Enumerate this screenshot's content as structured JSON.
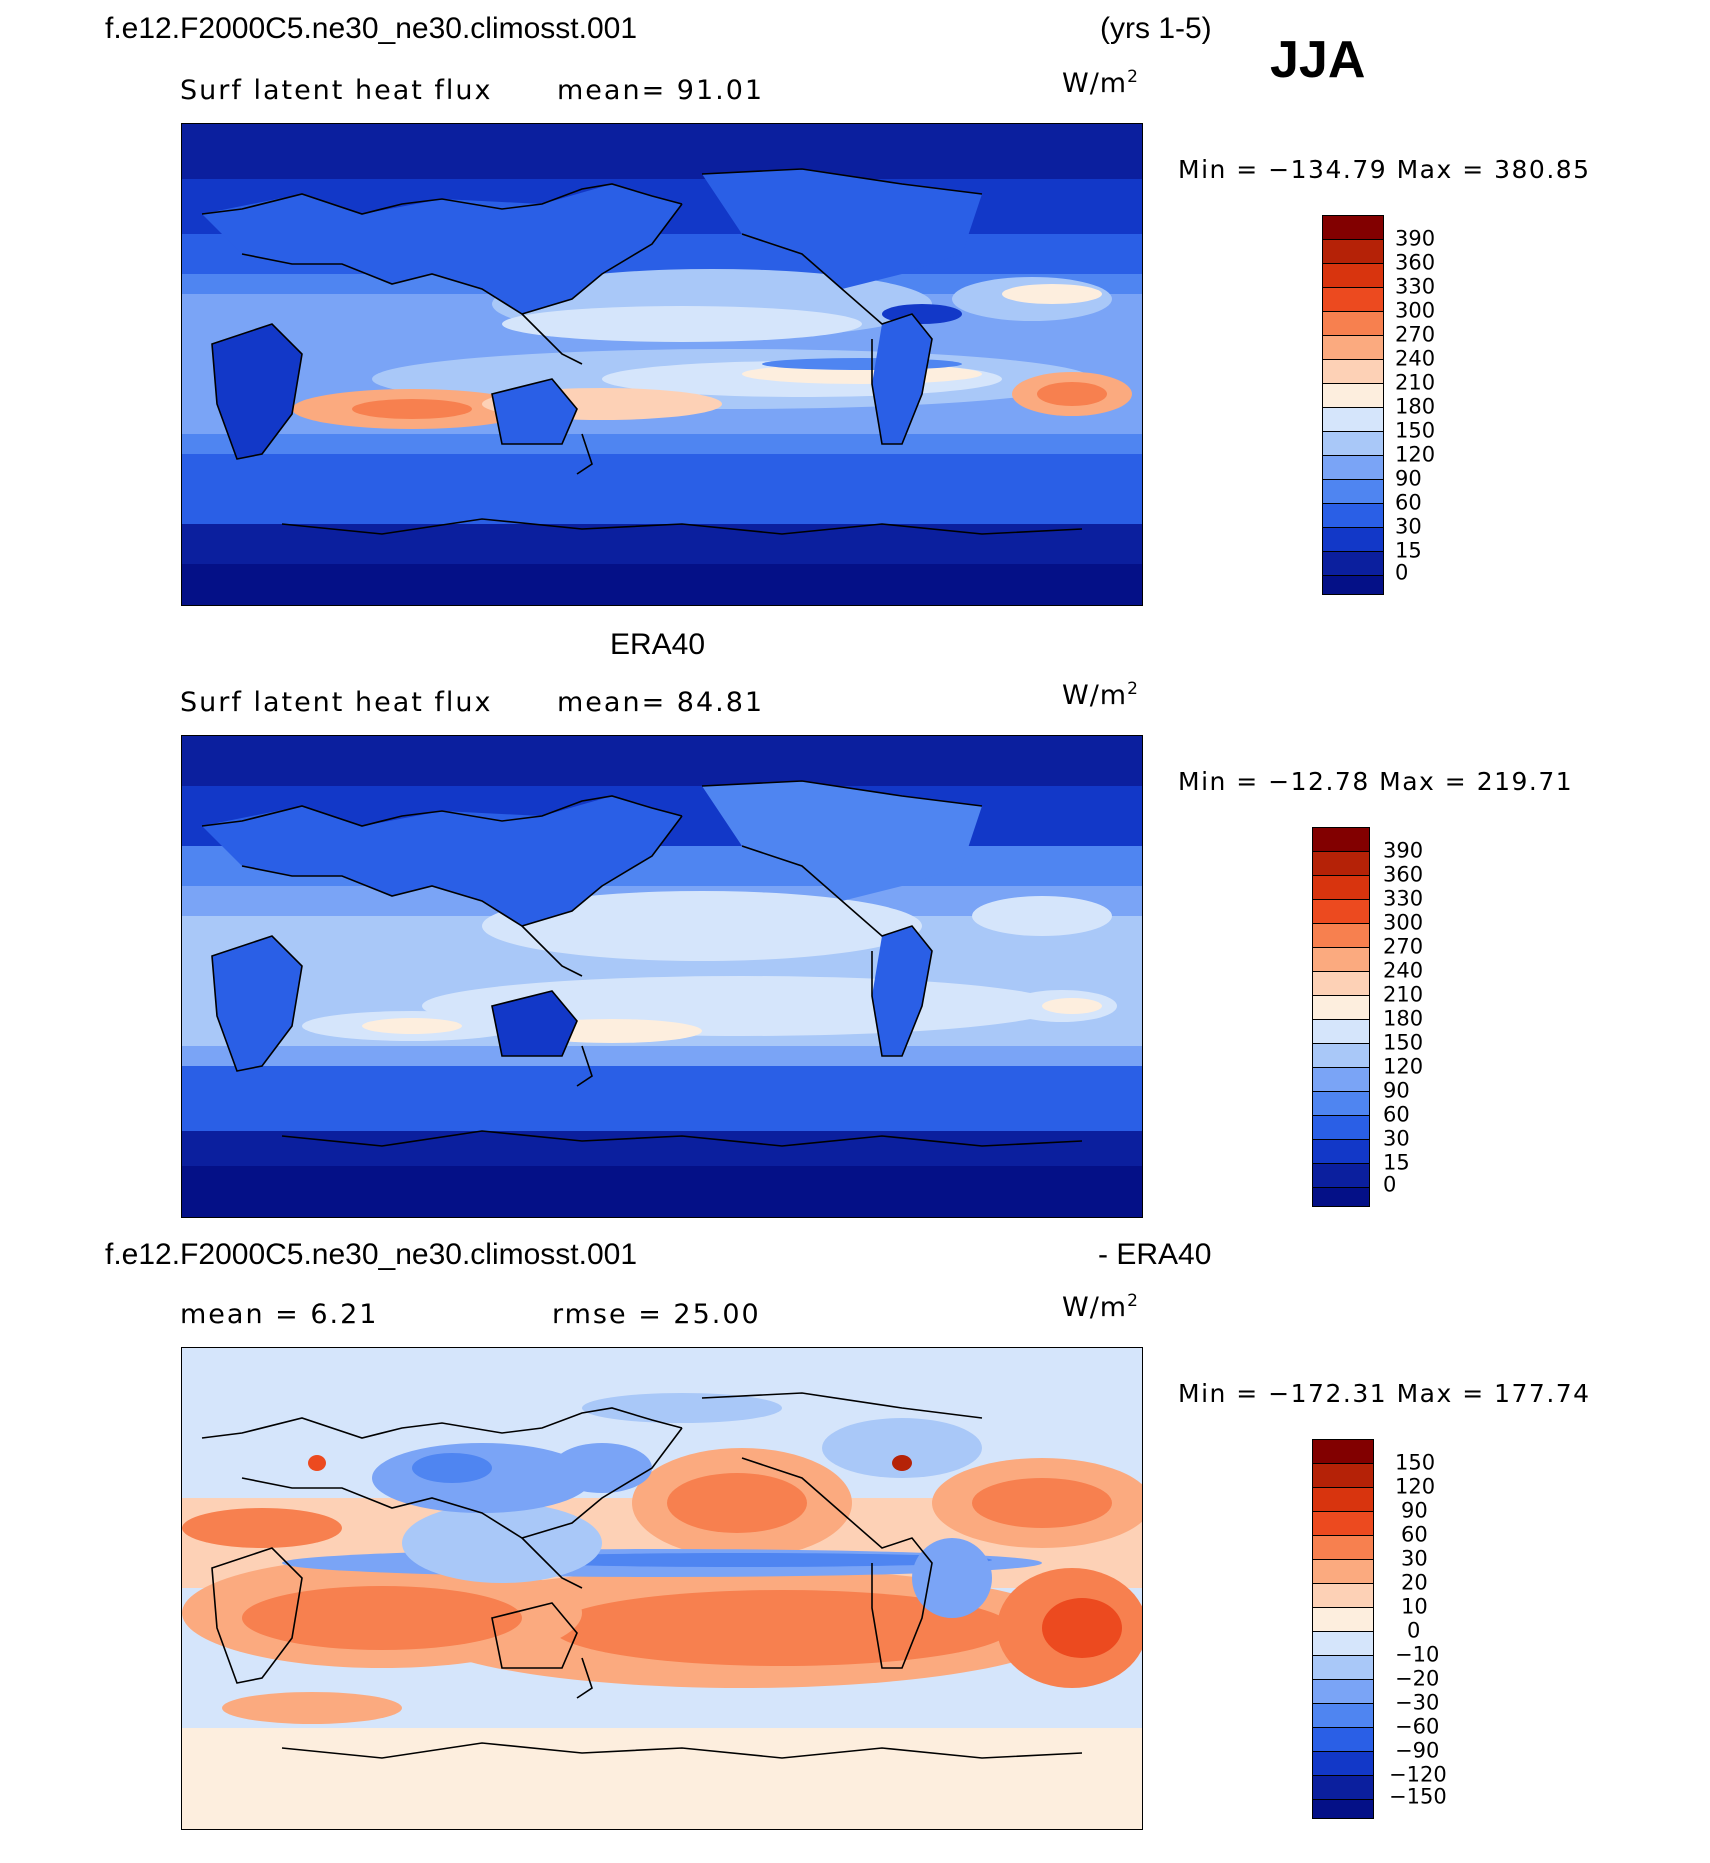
{
  "header": {
    "case_name": "f.e12.F2000C5.ne30_ne30.climosst.001",
    "years": "(yrs 1-5)",
    "season": "JJA"
  },
  "colors": {
    "blues": [
      "#05148a",
      "#0a2ab0",
      "#1240d0",
      "#2255e0",
      "#3a72ee",
      "#5b8ff5",
      "#7fa9f7",
      "#a4c3f8",
      "#c8dcfa",
      "#e4eefb"
    ],
    "reds": [
      "#fff0e2",
      "#fdd6c0",
      "#fbb692",
      "#f99064",
      "#f56c3c",
      "#ec4b20",
      "#d8320f",
      "#b81f08",
      "#8a0a00"
    ]
  },
  "panels": [
    {
      "id": "model",
      "top_title": "",
      "variable": "Surf latent heat flux",
      "stat1": "mean=   91.01",
      "stat2": "",
      "units": "W/m",
      "units_sup": "2",
      "min_max": "Min = −134.79 Max = 380.85",
      "colorbar_ticks": [
        "390",
        "360",
        "330",
        "300",
        "270",
        "240",
        "210",
        "180",
        "150",
        "120",
        "90",
        "60",
        "30",
        "15",
        "0"
      ],
      "colorbar_colors": [
        "#820000",
        "#b52207",
        "#d8340e",
        "#ec4a1f",
        "#f7804f",
        "#fbaa7f",
        "#fdd1b6",
        "#fdeede",
        "#d5e5fb",
        "#a9c8f8",
        "#7aa4f6",
        "#4f85f1",
        "#2a5fe6",
        "#1238c8",
        "#0b1f9e",
        "#041087"
      ]
    },
    {
      "id": "obs",
      "top_title": "ERA40",
      "variable": "Surf latent heat flux",
      "stat1": "mean=   84.81",
      "stat2": "",
      "units": "W/m",
      "units_sup": "2",
      "min_max": "Min = −12.78 Max = 219.71",
      "colorbar_ticks": [
        "390",
        "360",
        "330",
        "300",
        "270",
        "240",
        "210",
        "180",
        "150",
        "120",
        "90",
        "60",
        "30",
        "15",
        "0"
      ],
      "colorbar_colors": [
        "#820000",
        "#b52207",
        "#d8340e",
        "#ec4a1f",
        "#f7804f",
        "#fbaa7f",
        "#fdd1b6",
        "#fdeede",
        "#d5e5fb",
        "#a9c8f8",
        "#7aa4f6",
        "#4f85f1",
        "#2a5fe6",
        "#1238c8",
        "#0b1f9e",
        "#041087"
      ]
    },
    {
      "id": "diff",
      "top_title": "f.e12.F2000C5.ne30_ne30.climosst.001",
      "top_title_right": "- ERA40",
      "variable": "",
      "stat1": "mean =    6.21",
      "stat2": "rmse =   25.00",
      "units": "W/m",
      "units_sup": "2",
      "min_max": "Min = −172.31 Max = 177.74",
      "colorbar_ticks": [
        "150",
        "120",
        "90",
        "60",
        "30",
        "20",
        "10",
        "0",
        "−10",
        "−20",
        "−30",
        "−60",
        "−90",
        "−120",
        "−150"
      ],
      "colorbar_colors": [
        "#820000",
        "#b52207",
        "#d8340e",
        "#ec4a1f",
        "#f7804f",
        "#fbaa7f",
        "#fdd1b6",
        "#fdeede",
        "#d5e5fb",
        "#a9c8f8",
        "#7aa4f6",
        "#4f85f1",
        "#2a5fe6",
        "#1238c8",
        "#0b1f9e",
        "#041087"
      ]
    }
  ]
}
